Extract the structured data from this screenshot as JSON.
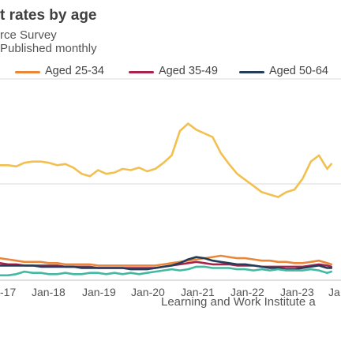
{
  "header": {
    "title": "t rates by age",
    "subtitle_line1": "rce Survey",
    "subtitle_line2": "Published monthly"
  },
  "legend": [
    {
      "label": "Aged 25-34",
      "color": "#e8873a"
    },
    {
      "label": "Aged 35-49",
      "color": "#a8234a"
    },
    {
      "label": "Aged 50-64",
      "color": "#243c5a"
    }
  ],
  "source": "Learning and Work Institute a",
  "chart_data": {
    "type": "line",
    "title": "t rates by age",
    "xlabel": "",
    "ylabel": "",
    "x_ticks": [
      "-17",
      "Jan-18",
      "Jan-19",
      "Jan-20",
      "Jan-21",
      "Jan-22",
      "Jan-23",
      "Ja"
    ],
    "x_range": [
      "2017-01",
      "2023-09"
    ],
    "grid": "horizontal",
    "series": [
      {
        "name": "",
        "color": "#f2c050",
        "x": [
          "2016-10",
          "2016-12",
          "2017-02",
          "2017-04",
          "2017-06",
          "2017-08",
          "2017-10",
          "2017-12",
          "2018-02",
          "2018-04",
          "2018-06",
          "2018-08",
          "2018-10",
          "2018-12",
          "2019-02",
          "2019-04",
          "2019-06",
          "2019-08",
          "2019-10",
          "2019-12",
          "2020-02",
          "2020-04",
          "2020-06",
          "2020-08",
          "2020-10",
          "2020-12",
          "2021-02",
          "2021-04",
          "2021-06",
          "2021-08",
          "2021-10",
          "2021-12",
          "2022-02",
          "2022-04",
          "2022-06",
          "2022-08",
          "2022-10",
          "2022-12",
          "2023-02",
          "2023-04",
          "2023-06",
          "2023-08",
          "2023-09"
        ],
        "values": [
          203,
          202,
          202,
          201,
          204,
          205,
          205,
          204,
          202,
          203,
          200,
          195,
          193,
          198,
          195,
          196,
          199,
          198,
          200,
          197,
          199,
          204,
          210,
          230,
          236,
          231,
          228,
          225,
          212,
          203,
          195,
          190,
          185,
          180,
          178,
          176,
          180,
          182,
          191,
          205,
          210,
          199,
          203
        ]
      },
      {
        "name": "Aged 25-34",
        "color": "#e8873a",
        "x": [
          "2016-10",
          "2016-12",
          "2017-02",
          "2017-04",
          "2017-06",
          "2017-08",
          "2017-10",
          "2017-12",
          "2018-02",
          "2018-04",
          "2018-06",
          "2018-08",
          "2018-10",
          "2018-12",
          "2019-02",
          "2019-04",
          "2019-06",
          "2019-08",
          "2019-10",
          "2019-12",
          "2020-02",
          "2020-04",
          "2020-06",
          "2020-08",
          "2020-10",
          "2020-12",
          "2021-02",
          "2021-04",
          "2021-06",
          "2021-08",
          "2021-10",
          "2021-12",
          "2022-02",
          "2022-04",
          "2022-06",
          "2022-08",
          "2022-10",
          "2022-12",
          "2023-02",
          "2023-04",
          "2023-06",
          "2023-08",
          "2023-09"
        ],
        "values": [
          127,
          126,
          125,
          124,
          123,
          123,
          123,
          122,
          122,
          121,
          121,
          121,
          121,
          120,
          120,
          120,
          120,
          120,
          120,
          120,
          120,
          121,
          122,
          123,
          124,
          125,
          126,
          127,
          128,
          127,
          126,
          126,
          125,
          124,
          124,
          123,
          123,
          122,
          122,
          123,
          124,
          122,
          121
        ]
      },
      {
        "name": "Aged 35-49",
        "color": "#a8234a",
        "x": [
          "2016-10",
          "2016-12",
          "2017-02",
          "2017-04",
          "2017-06",
          "2017-08",
          "2017-10",
          "2017-12",
          "2018-02",
          "2018-04",
          "2018-06",
          "2018-08",
          "2018-10",
          "2018-12",
          "2019-02",
          "2019-04",
          "2019-06",
          "2019-08",
          "2019-10",
          "2019-12",
          "2020-02",
          "2020-04",
          "2020-06",
          "2020-08",
          "2020-10",
          "2020-12",
          "2021-02",
          "2021-04",
          "2021-06",
          "2021-08",
          "2021-10",
          "2021-12",
          "2022-02",
          "2022-04",
          "2022-06",
          "2022-08",
          "2022-10",
          "2022-12",
          "2023-02",
          "2023-04",
          "2023-06",
          "2023-08",
          "2023-09"
        ],
        "values": [
          123,
          122,
          121,
          121,
          120,
          120,
          120,
          120,
          120,
          119,
          119,
          119,
          119,
          118,
          118,
          118,
          118,
          118,
          118,
          118,
          118,
          119,
          120,
          121,
          122,
          123,
          122,
          121,
          121,
          121,
          120,
          120,
          120,
          119,
          119,
          119,
          119,
          119,
          119,
          120,
          121,
          120,
          119
        ]
      },
      {
        "name": "Aged 50-64",
        "color": "#243c5a",
        "x": [
          "2016-10",
          "2016-12",
          "2017-02",
          "2017-04",
          "2017-06",
          "2017-08",
          "2017-10",
          "2017-12",
          "2018-02",
          "2018-04",
          "2018-06",
          "2018-08",
          "2018-10",
          "2018-12",
          "2019-02",
          "2019-04",
          "2019-06",
          "2019-08",
          "2019-10",
          "2019-12",
          "2020-02",
          "2020-04",
          "2020-06",
          "2020-08",
          "2020-10",
          "2020-12",
          "2021-02",
          "2021-04",
          "2021-06",
          "2021-08",
          "2021-10",
          "2021-12",
          "2022-02",
          "2022-04",
          "2022-06",
          "2022-08",
          "2022-10",
          "2022-12",
          "2023-02",
          "2023-04",
          "2023-06",
          "2023-08",
          "2023-09"
        ],
        "values": [
          121,
          120,
          120,
          120,
          120,
          120,
          119,
          119,
          119,
          119,
          119,
          118,
          118,
          118,
          118,
          118,
          118,
          117,
          117,
          117,
          118,
          119,
          120,
          122,
          125,
          127,
          126,
          124,
          123,
          122,
          121,
          121,
          120,
          119,
          118,
          118,
          117,
          117,
          118,
          119,
          120,
          118,
          118
        ]
      },
      {
        "name": "",
        "color": "#43b9a2",
        "x": [
          "2016-10",
          "2016-12",
          "2017-02",
          "2017-04",
          "2017-06",
          "2017-08",
          "2017-10",
          "2017-12",
          "2018-02",
          "2018-04",
          "2018-06",
          "2018-08",
          "2018-10",
          "2018-12",
          "2019-02",
          "2019-04",
          "2019-06",
          "2019-08",
          "2019-10",
          "2019-12",
          "2020-02",
          "2020-04",
          "2020-06",
          "2020-08",
          "2020-10",
          "2020-12",
          "2021-02",
          "2021-04",
          "2021-06",
          "2021-08",
          "2021-10",
          "2021-12",
          "2022-02",
          "2022-04",
          "2022-06",
          "2022-08",
          "2022-10",
          "2022-12",
          "2023-02",
          "2023-04",
          "2023-06",
          "2023-08",
          "2023-09"
        ],
        "values": [
          113,
          112,
          112,
          113,
          115,
          114,
          114,
          113,
          113,
          114,
          113,
          113,
          114,
          114,
          113,
          114,
          113,
          114,
          113,
          114,
          115,
          116,
          117,
          116,
          117,
          119,
          119,
          118,
          118,
          118,
          117,
          117,
          116,
          117,
          116,
          117,
          116,
          116,
          116,
          117,
          116,
          114,
          115
        ]
      }
    ]
  }
}
